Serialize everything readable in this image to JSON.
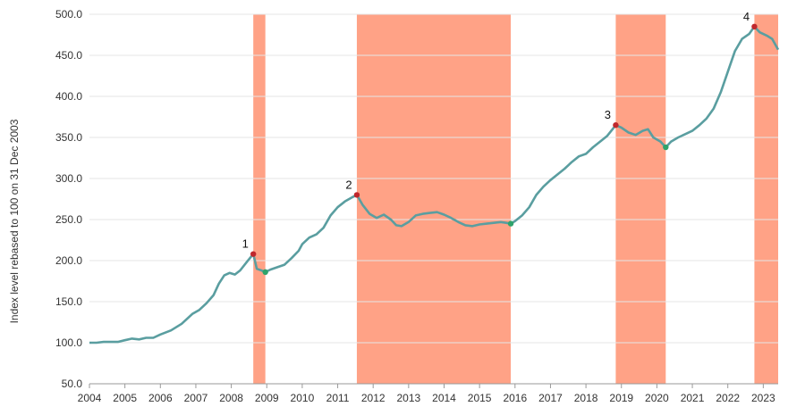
{
  "chart_data": {
    "type": "line",
    "title": "",
    "xlabel": "",
    "ylabel": "Index level rebased to 100 on 31 Dec 2003",
    "xlim": [
      2004.0,
      2023.42
    ],
    "ylim": [
      50,
      500
    ],
    "x_ticks": [
      "2004",
      "2005",
      "2006",
      "2007",
      "2008",
      "2009",
      "2010",
      "2011",
      "2012",
      "2013",
      "2014",
      "2015",
      "2016",
      "2017",
      "2018",
      "2019",
      "2020",
      "2021",
      "2022",
      "2023"
    ],
    "y_ticks": [
      "50.0",
      "100.0",
      "150.0",
      "200.0",
      "250.0",
      "300.0",
      "350.0",
      "400.0",
      "450.0",
      "500.0"
    ],
    "grid": "horizontal",
    "colors": {
      "line": "#5a9ea0",
      "band": "#ffa286",
      "peak": "#c0282d",
      "trough": "#2fa36b"
    },
    "bands": [
      {
        "start": 2008.62,
        "end": 2008.96
      },
      {
        "start": 2011.54,
        "end": 2015.88
      },
      {
        "start": 2018.84,
        "end": 2020.25
      },
      {
        "start": 2022.75,
        "end": 2023.42
      }
    ],
    "peaks": [
      {
        "label": "1",
        "x": 2008.62,
        "y": 208
      },
      {
        "label": "2",
        "x": 2011.54,
        "y": 280
      },
      {
        "label": "3",
        "x": 2018.84,
        "y": 365
      },
      {
        "label": "4",
        "x": 2022.75,
        "y": 485
      }
    ],
    "troughs": [
      {
        "x": 2008.96,
        "y": 186
      },
      {
        "x": 2015.88,
        "y": 245
      },
      {
        "x": 2020.25,
        "y": 338
      }
    ],
    "series": [
      {
        "values": [
          [
            2004.0,
            100
          ],
          [
            2004.2,
            100
          ],
          [
            2004.4,
            101
          ],
          [
            2004.6,
            101
          ],
          [
            2004.8,
            101
          ],
          [
            2005.0,
            103
          ],
          [
            2005.2,
            105
          ],
          [
            2005.4,
            104
          ],
          [
            2005.6,
            106
          ],
          [
            2005.8,
            106
          ],
          [
            2006.0,
            110
          ],
          [
            2006.3,
            115
          ],
          [
            2006.6,
            123
          ],
          [
            2006.9,
            135
          ],
          [
            2007.1,
            140
          ],
          [
            2007.3,
            148
          ],
          [
            2007.5,
            158
          ],
          [
            2007.65,
            172
          ],
          [
            2007.8,
            182
          ],
          [
            2007.95,
            185
          ],
          [
            2008.1,
            183
          ],
          [
            2008.25,
            188
          ],
          [
            2008.45,
            199
          ],
          [
            2008.62,
            208
          ],
          [
            2008.72,
            190
          ],
          [
            2008.85,
            188
          ],
          [
            2008.96,
            186
          ],
          [
            2009.1,
            189
          ],
          [
            2009.3,
            192
          ],
          [
            2009.5,
            195
          ],
          [
            2009.7,
            203
          ],
          [
            2009.9,
            212
          ],
          [
            2010.0,
            220
          ],
          [
            2010.2,
            228
          ],
          [
            2010.4,
            232
          ],
          [
            2010.6,
            240
          ],
          [
            2010.8,
            255
          ],
          [
            2011.0,
            265
          ],
          [
            2011.2,
            272
          ],
          [
            2011.4,
            277
          ],
          [
            2011.54,
            280
          ],
          [
            2011.7,
            268
          ],
          [
            2011.9,
            257
          ],
          [
            2012.1,
            252
          ],
          [
            2012.3,
            256
          ],
          [
            2012.5,
            250
          ],
          [
            2012.65,
            243
          ],
          [
            2012.8,
            242
          ],
          [
            2013.0,
            247
          ],
          [
            2013.2,
            255
          ],
          [
            2013.4,
            257
          ],
          [
            2013.6,
            258
          ],
          [
            2013.8,
            259
          ],
          [
            2014.0,
            256
          ],
          [
            2014.2,
            252
          ],
          [
            2014.4,
            247
          ],
          [
            2014.6,
            243
          ],
          [
            2014.8,
            242
          ],
          [
            2015.0,
            244
          ],
          [
            2015.2,
            245
          ],
          [
            2015.4,
            246
          ],
          [
            2015.6,
            247
          ],
          [
            2015.75,
            246
          ],
          [
            2015.88,
            245
          ],
          [
            2016.0,
            248
          ],
          [
            2016.2,
            255
          ],
          [
            2016.4,
            265
          ],
          [
            2016.6,
            280
          ],
          [
            2016.8,
            290
          ],
          [
            2017.0,
            298
          ],
          [
            2017.2,
            305
          ],
          [
            2017.4,
            312
          ],
          [
            2017.6,
            320
          ],
          [
            2017.8,
            327
          ],
          [
            2018.0,
            330
          ],
          [
            2018.2,
            338
          ],
          [
            2018.4,
            345
          ],
          [
            2018.6,
            352
          ],
          [
            2018.75,
            360
          ],
          [
            2018.84,
            365
          ],
          [
            2019.0,
            362
          ],
          [
            2019.2,
            356
          ],
          [
            2019.4,
            353
          ],
          [
            2019.6,
            358
          ],
          [
            2019.75,
            360
          ],
          [
            2019.9,
            350
          ],
          [
            2020.1,
            345
          ],
          [
            2020.25,
            338
          ],
          [
            2020.4,
            345
          ],
          [
            2020.6,
            350
          ],
          [
            2020.8,
            354
          ],
          [
            2021.0,
            358
          ],
          [
            2021.2,
            365
          ],
          [
            2021.4,
            373
          ],
          [
            2021.6,
            385
          ],
          [
            2021.8,
            405
          ],
          [
            2022.0,
            430
          ],
          [
            2022.2,
            455
          ],
          [
            2022.4,
            470
          ],
          [
            2022.6,
            476
          ],
          [
            2022.75,
            485
          ],
          [
            2022.9,
            478
          ],
          [
            2023.1,
            474
          ],
          [
            2023.25,
            470
          ],
          [
            2023.42,
            457
          ]
        ]
      }
    ]
  }
}
